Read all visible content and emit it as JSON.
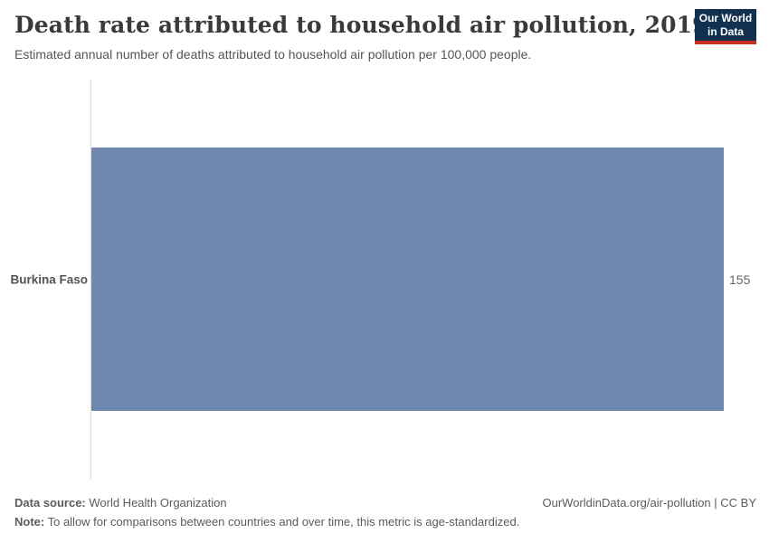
{
  "header": {
    "title": "Death rate attributed to household air pollution, 2019",
    "subtitle": "Estimated annual number of deaths attributed to household air pollution per 100,000 people.",
    "logo": {
      "line1": "Our World",
      "line2": "in Data"
    }
  },
  "chart_data": {
    "type": "bar",
    "orientation": "horizontal",
    "title": "Death rate attributed to household air pollution, 2019",
    "subtitle": "Estimated annual number of deaths attributed to household air pollution per 100,000 people.",
    "categories": [
      "Burkina Faso"
    ],
    "values": [
      155
    ],
    "value_labels": [
      "155"
    ],
    "xlabel": "",
    "ylabel": "",
    "xlim": [
      0,
      155
    ],
    "grid": false,
    "legend": "none"
  },
  "footer": {
    "data_source_label": "Data source:",
    "data_source": " World Health Organization",
    "note_label": "Note:",
    "note": " To allow for comparisons between countries and over time, this metric is age-standardized.",
    "attribution": "OurWorldinData.org/air-pollution | CC BY"
  },
  "colors": {
    "bar": "#6f88b0",
    "logo_navy": "#12304f",
    "logo_red": "#c7301f",
    "axis_line": "#dcdcdc",
    "title_text": "#3a3a3a",
    "body_text": "#555555"
  }
}
